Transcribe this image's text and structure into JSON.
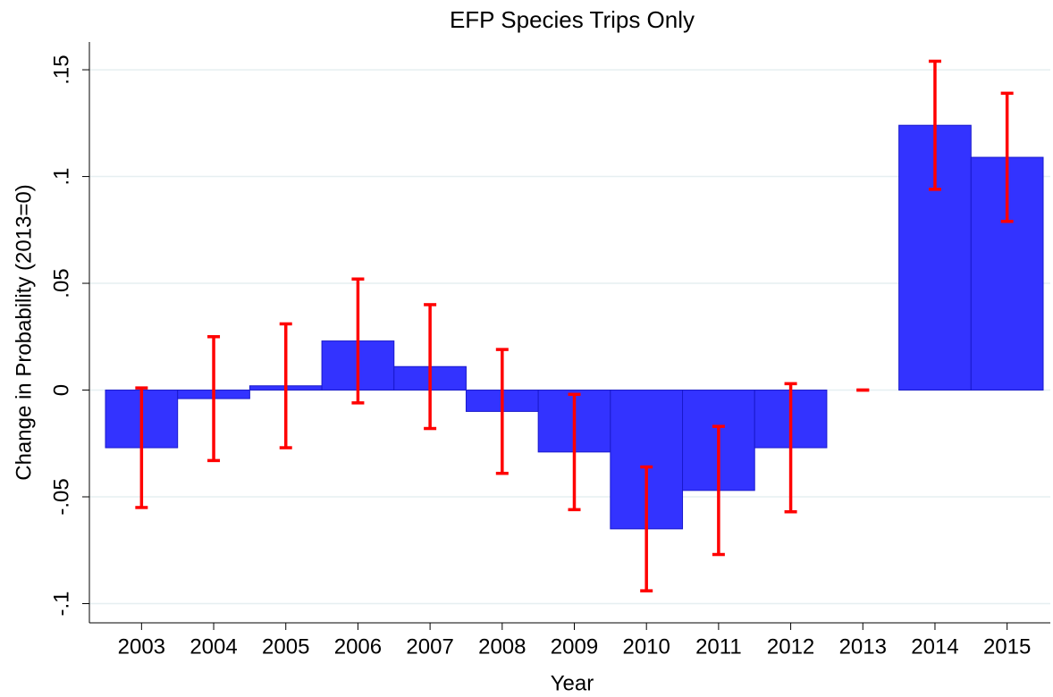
{
  "chart_data": {
    "type": "bar",
    "title": "EFP Species Trips Only",
    "x_label": "Year",
    "y_label": "Change in Probability (2013=0)",
    "categories": [
      "2003",
      "2004",
      "2005",
      "2006",
      "2007",
      "2008",
      "2009",
      "2010",
      "2011",
      "2012",
      "2013",
      "2014",
      "2015"
    ],
    "values": [
      -0.027,
      -0.004,
      0.002,
      0.023,
      0.011,
      -0.01,
      -0.029,
      -0.065,
      -0.047,
      -0.027,
      0,
      0.124,
      0.109
    ],
    "errors": [
      0.028,
      0.029,
      0.029,
      0.029,
      0.029,
      0.029,
      0.027,
      0.029,
      0.03,
      0.03,
      0,
      0.03,
      0.03
    ],
    "color": "#3333ff",
    "error_color": "#ff0000",
    "ylim": [
      -0.109,
      0.163
    ],
    "yticks": [
      {
        "value": -0.1,
        "label": "-.1"
      },
      {
        "value": -0.05,
        "label": "-.05"
      },
      0,
      {
        "value": 0.05,
        "label": ".05"
      },
      {
        "value": 0.1,
        "label": ".1"
      },
      {
        "value": 0.15,
        "label": ".15"
      }
    ],
    "grid": true
  }
}
